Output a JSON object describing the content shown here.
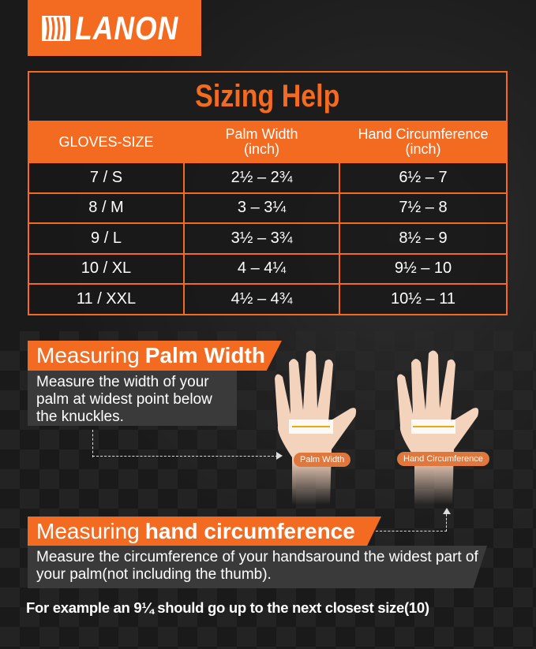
{
  "brand": {
    "name": "LANON",
    "color": "#f36a21"
  },
  "table": {
    "title": "Sizing Help",
    "headers": [
      {
        "line1": "GLOVES-SIZE",
        "line2": ""
      },
      {
        "line1": "Palm Width",
        "line2": "(inch)"
      },
      {
        "line1": "Hand Circumference",
        "line2": "(inch)"
      }
    ],
    "rows": [
      [
        "7 / S",
        "2½ – 2¾",
        "6½ – 7"
      ],
      [
        "8 / M",
        "3 – 3¼",
        "7½ – 8"
      ],
      [
        "9 / L",
        "3½ – 3¾",
        "8½ – 9"
      ],
      [
        "10 / XL",
        "4 – 4¼",
        "9½ – 10"
      ],
      [
        "11 / XXL",
        "4½ – 4¾",
        "10½  – 11"
      ]
    ]
  },
  "palm": {
    "title_light": "Measuring",
    "title_bold": "Palm Width",
    "text": "Measure the width of your palm at widest point below the knuckles.",
    "label": "Palm Width"
  },
  "circ": {
    "title_light": "Measuring",
    "title_bold": "hand circumference",
    "text": "Measure the circumference of your handsaround the widest part of your palm(not including the thumb).",
    "label": "Hand Circumference"
  },
  "footer": "For example an 9¼ should go up to the next closest size(10)"
}
